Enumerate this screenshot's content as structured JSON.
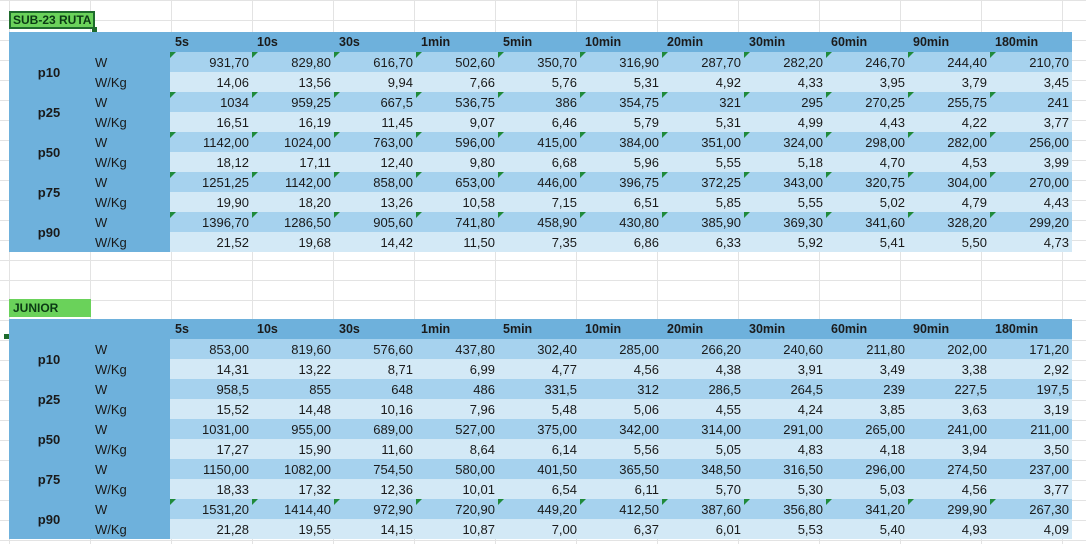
{
  "columns": [
    "5s",
    "10s",
    "30s",
    "1min",
    "5min",
    "10min",
    "20min",
    "30min",
    "60min",
    "90min",
    "180min"
  ],
  "tables": [
    {
      "title": "SUB-23 RUTA",
      "rows": [
        {
          "p": "p10",
          "w": [
            "931,70",
            "829,80",
            "616,70",
            "502,60",
            "350,70",
            "316,90",
            "287,70",
            "282,20",
            "246,70",
            "244,40",
            "210,70"
          ],
          "wkg": [
            "14,06",
            "13,56",
            "9,94",
            "7,66",
            "5,76",
            "5,31",
            "4,92",
            "4,33",
            "3,95",
            "3,79",
            "3,45"
          ]
        },
        {
          "p": "p25",
          "w": [
            "1034",
            "959,25",
            "667,5",
            "536,75",
            "386",
            "354,75",
            "321",
            "295",
            "270,25",
            "255,75",
            "241"
          ],
          "wkg": [
            "16,51",
            "16,19",
            "11,45",
            "9,07",
            "6,46",
            "5,79",
            "5,31",
            "4,99",
            "4,43",
            "4,22",
            "3,77"
          ]
        },
        {
          "p": "p50",
          "w": [
            "1142,00",
            "1024,00",
            "763,00",
            "596,00",
            "415,00",
            "384,00",
            "351,00",
            "324,00",
            "298,00",
            "282,00",
            "256,00"
          ],
          "wkg": [
            "18,12",
            "17,11",
            "12,40",
            "9,80",
            "6,68",
            "5,96",
            "5,55",
            "5,18",
            "4,70",
            "4,53",
            "3,99"
          ]
        },
        {
          "p": "p75",
          "w": [
            "1251,25",
            "1142,00",
            "858,00",
            "653,00",
            "446,00",
            "396,75",
            "372,25",
            "343,00",
            "320,75",
            "304,00",
            "270,00"
          ],
          "wkg": [
            "19,90",
            "18,20",
            "13,26",
            "10,58",
            "7,15",
            "6,51",
            "5,85",
            "5,55",
            "5,02",
            "4,79",
            "4,43"
          ]
        },
        {
          "p": "p90",
          "w": [
            "1396,70",
            "1286,50",
            "905,60",
            "741,80",
            "458,90",
            "430,80",
            "385,90",
            "369,30",
            "341,60",
            "328,20",
            "299,20"
          ],
          "wkg": [
            "21,52",
            "19,68",
            "14,42",
            "11,50",
            "7,35",
            "6,86",
            "6,33",
            "5,92",
            "5,41",
            "5,50",
            "4,73"
          ]
        }
      ]
    },
    {
      "title": "JUNIOR",
      "rows": [
        {
          "p": "p10",
          "w": [
            "853,00",
            "819,60",
            "576,60",
            "437,80",
            "302,40",
            "285,00",
            "266,20",
            "240,60",
            "211,80",
            "202,00",
            "171,20"
          ],
          "wkg": [
            "14,31",
            "13,22",
            "8,71",
            "6,99",
            "4,77",
            "4,56",
            "4,38",
            "3,91",
            "3,49",
            "3,38",
            "2,92"
          ]
        },
        {
          "p": "p25",
          "w": [
            "958,5",
            "855",
            "648",
            "486",
            "331,5",
            "312",
            "286,5",
            "264,5",
            "239",
            "227,5",
            "197,5"
          ],
          "wkg": [
            "15,52",
            "14,48",
            "10,16",
            "7,96",
            "5,48",
            "5,06",
            "4,55",
            "4,24",
            "3,85",
            "3,63",
            "3,19"
          ]
        },
        {
          "p": "p50",
          "w": [
            "1031,00",
            "955,00",
            "689,00",
            "527,00",
            "375,00",
            "342,00",
            "314,00",
            "291,00",
            "265,00",
            "241,00",
            "211,00"
          ],
          "wkg": [
            "17,27",
            "15,90",
            "11,60",
            "8,64",
            "6,14",
            "5,56",
            "5,05",
            "4,83",
            "4,18",
            "3,94",
            "3,50"
          ]
        },
        {
          "p": "p75",
          "w": [
            "1150,00",
            "1082,00",
            "754,50",
            "580,00",
            "401,50",
            "365,50",
            "348,50",
            "316,50",
            "296,00",
            "274,50",
            "237,00"
          ],
          "wkg": [
            "18,33",
            "17,32",
            "12,36",
            "10,01",
            "6,54",
            "6,11",
            "5,70",
            "5,30",
            "5,03",
            "4,56",
            "3,77"
          ]
        },
        {
          "p": "p90",
          "w": [
            "1531,20",
            "1414,40",
            "972,90",
            "720,90",
            "449,20",
            "412,50",
            "387,60",
            "356,80",
            "341,20",
            "299,90",
            "267,30"
          ],
          "wkg": [
            "21,28",
            "19,55",
            "14,15",
            "10,87",
            "7,00",
            "6,37",
            "6,01",
            "5,53",
            "5,40",
            "4,93",
            "4,09"
          ]
        }
      ]
    }
  ],
  "units": {
    "w": "W",
    "wkg": "W/Kg"
  },
  "colors": {
    "header": "#6eb1dc",
    "row_dark": "#a6d2ee",
    "row_light": "#d3e9f6",
    "title_bg": "#6ad25a",
    "flag": "#1f8a3a"
  }
}
